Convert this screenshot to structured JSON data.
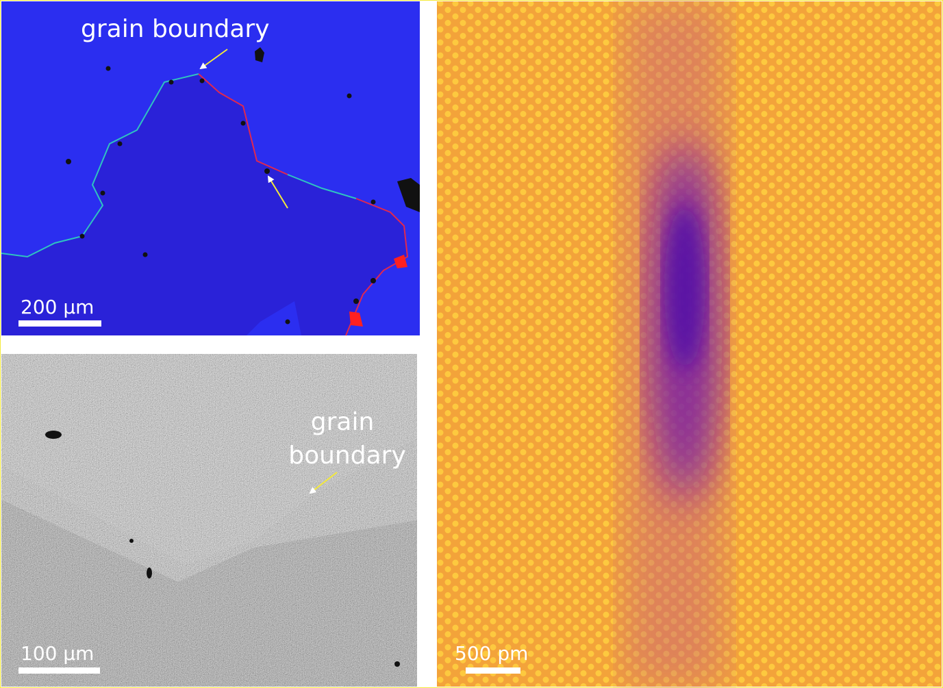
{
  "panels": [
    {
      "label": "grain boundary",
      "scale_bar": "200 µm"
    },
    {
      "label_lines": [
        "grain",
        "boundary"
      ],
      "scale_bar": "100 µm"
    },
    {
      "scale_bar": "500 pm"
    }
  ]
}
